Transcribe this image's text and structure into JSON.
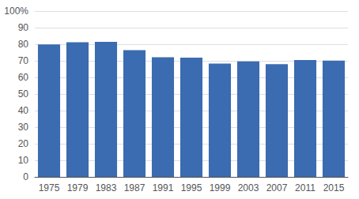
{
  "chart_data": {
    "type": "bar",
    "categories": [
      "1975",
      "1979",
      "1983",
      "1987",
      "1991",
      "1995",
      "1999",
      "2003",
      "2007",
      "2011",
      "2015"
    ],
    "values": [
      79.9,
      81.2,
      81.4,
      76.4,
      72.1,
      71.9,
      68.3,
      69.7,
      68.0,
      70.5,
      70.1
    ],
    "color": "#3B6BB0",
    "ylim": [
      0,
      100
    ],
    "yticks": [
      0,
      10,
      20,
      30,
      40,
      50,
      60,
      70,
      80,
      90,
      {
        "value": 100,
        "label": "100%"
      }
    ],
    "grid": true
  }
}
